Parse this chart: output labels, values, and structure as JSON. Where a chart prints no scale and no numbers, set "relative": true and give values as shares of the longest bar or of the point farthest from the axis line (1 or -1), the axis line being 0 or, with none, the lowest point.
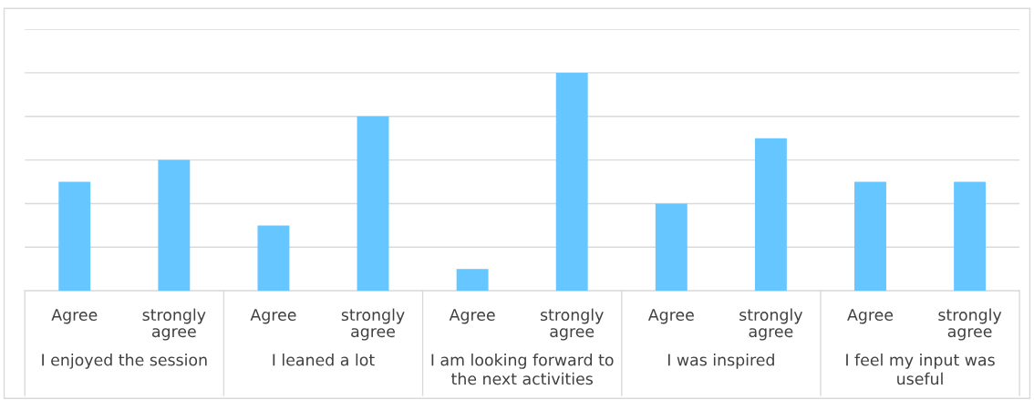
{
  "chart_data": {
    "type": "bar",
    "relative": true,
    "grid": "y",
    "color": "#66c6ff",
    "categories": [
      "Agree",
      "strongly\nagree",
      "Agree",
      "strongly\nagree",
      "Agree",
      "strongly\nagree",
      "Agree",
      "strongly\nagree",
      "Agree",
      "strongly\nagree"
    ],
    "values": [
      0.5,
      0.6,
      0.3,
      0.8,
      0.1,
      1,
      0.4,
      0.7,
      0.5,
      0.5
    ],
    "annotations": [
      "I enjoyed the session",
      "I leaned a lot",
      "I am looking forward to\nthe next activities",
      "I was inspired",
      "I feel my input was\nuseful"
    ]
  }
}
